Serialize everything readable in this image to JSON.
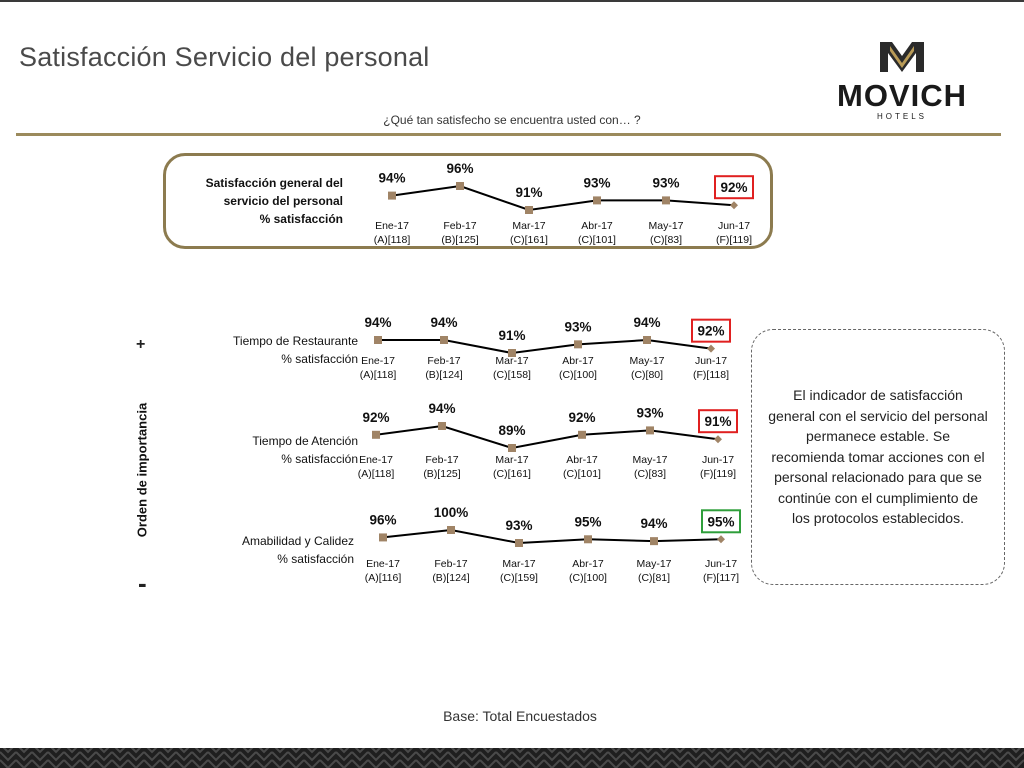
{
  "title": "Satisfacción Servicio del personal",
  "question": "¿Qué tan satisfecho se encuentra usted con… ?",
  "logo": {
    "name": "MOVICH",
    "sub": "HOTELS"
  },
  "axis": {
    "label": "Orden de importancia",
    "plus": "+",
    "minus": "-"
  },
  "note": "El indicador de satisfacción general con el servicio del personal permanece estable. Se recomienda tomar acciones con el personal relacionado para que se continúe con el cumplimiento de los protocolos establecidos.",
  "base": "Base: Total Encuestados",
  "colors": {
    "gold": "#9b8a5c",
    "marker": "#a08466",
    "line": "#000000",
    "red": "#e02020",
    "green": "#2e9e3a"
  },
  "rows": [
    {
      "label": [
        "Satisfacción general del",
        "servicio del personal",
        "% satisfacción"
      ],
      "bold": true
    },
    {
      "label": [
        "Tiempo de Restaurante",
        "% satisfacción"
      ],
      "bold": false
    },
    {
      "label": [
        "Tiempo de Atención",
        "% satisfacción"
      ],
      "bold": false
    },
    {
      "label": [
        "Amabilidad y Calidez",
        "% satisfacción"
      ],
      "bold": false
    }
  ],
  "chart_data": [
    {
      "type": "line",
      "title": "Satisfacción general del servicio del personal % satisfacción",
      "categories": [
        "Ene-17",
        "Feb-17",
        "Mar-17",
        "Abr-17",
        "May-17",
        "Jun-17"
      ],
      "bases": [
        "(A)[118]",
        "(B)[125]",
        "(C)[161]",
        "(C)[101]",
        "(C)[83]",
        "(F)[119]"
      ],
      "values": [
        94,
        96,
        91,
        93,
        93,
        92
      ],
      "value_labels": [
        "94%",
        "96%",
        "91%",
        "93%",
        "93%",
        "92%"
      ],
      "highlight": {
        "index": 5,
        "color": "red"
      }
    },
    {
      "type": "line",
      "title": "Tiempo de Restaurante % satisfacción",
      "categories": [
        "Ene-17",
        "Feb-17",
        "Mar-17",
        "Abr-17",
        "May-17",
        "Jun-17"
      ],
      "bases": [
        "(A)[118]",
        "(B)[124]",
        "(C)[158]",
        "(C)[100]",
        "(C)[80]",
        "(F)[118]"
      ],
      "values": [
        94,
        94,
        91,
        93,
        94,
        92
      ],
      "value_labels": [
        "94%",
        "94%",
        "91%",
        "93%",
        "94%",
        "92%"
      ],
      "highlight": {
        "index": 5,
        "color": "red"
      }
    },
    {
      "type": "line",
      "title": "Tiempo de Atención % satisfacción",
      "categories": [
        "Ene-17",
        "Feb-17",
        "Mar-17",
        "Abr-17",
        "May-17",
        "Jun-17"
      ],
      "bases": [
        "(A)[118]",
        "(B)[125]",
        "(C)[161]",
        "(C)[101]",
        "(C)[83]",
        "(F)[119]"
      ],
      "values": [
        92,
        94,
        89,
        92,
        93,
        91
      ],
      "value_labels": [
        "92%",
        "94%",
        "89%",
        "92%",
        "93%",
        "91%"
      ],
      "highlight": {
        "index": 5,
        "color": "red"
      }
    },
    {
      "type": "line",
      "title": "Amabilidad y Calidez % satisfacción",
      "categories": [
        "Ene-17",
        "Feb-17",
        "Mar-17",
        "Abr-17",
        "May-17",
        "Jun-17"
      ],
      "bases": [
        "(A)[116]",
        "(B)[124]",
        "(C)[159]",
        "(C)[100]",
        "(C)[81]",
        "(F)[117]"
      ],
      "values": [
        96,
        100,
        93,
        95,
        94,
        95
      ],
      "value_labels": [
        "96%",
        "100%",
        "93%",
        "95%",
        "94%",
        "95%"
      ],
      "highlight": {
        "index": 5,
        "color": "green"
      }
    }
  ]
}
